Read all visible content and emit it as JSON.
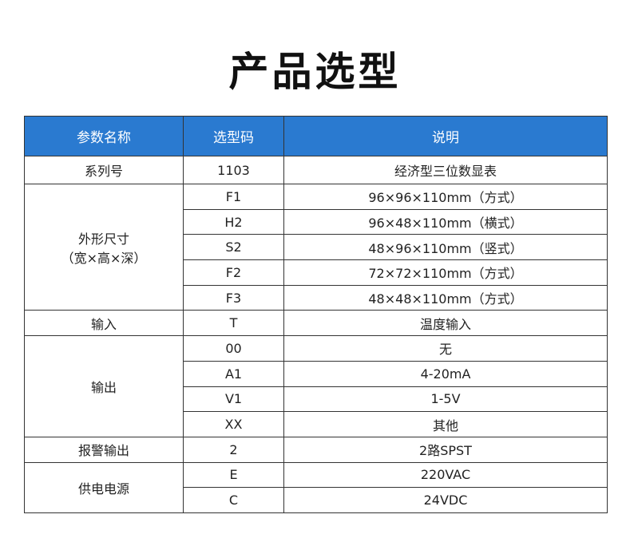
{
  "title": "产品选型",
  "header_color": "#2a7ad0",
  "columns": [
    "参数名称",
    "选型码",
    "说明"
  ],
  "groups": [
    {
      "name": "系列号",
      "rows": [
        [
          "1103",
          "经济型三位数显表"
        ]
      ]
    },
    {
      "name": "外形尺寸\n（宽×高×深）",
      "rows": [
        [
          "F1",
          "96×96×110mm（方式）"
        ],
        [
          "H2",
          "96×48×110mm（横式）"
        ],
        [
          "S2",
          "48×96×110mm（竖式）"
        ],
        [
          "F2",
          "72×72×110mm（方式）"
        ],
        [
          "F3",
          "48×48×110mm（方式）"
        ]
      ]
    },
    {
      "name": "输入",
      "rows": [
        [
          "T",
          "温度输入"
        ]
      ]
    },
    {
      "name": "输出",
      "rows": [
        [
          "00",
          "无"
        ],
        [
          "A1",
          "4-20mA"
        ],
        [
          "V1",
          "1-5V"
        ],
        [
          "XX",
          "其他"
        ]
      ]
    },
    {
      "name": "报警输出",
      "rows": [
        [
          "2",
          "2路SPST"
        ]
      ]
    },
    {
      "name": "供电电源",
      "rows": [
        [
          "E",
          "220VAC"
        ],
        [
          "C",
          "24VDC"
        ]
      ]
    }
  ]
}
